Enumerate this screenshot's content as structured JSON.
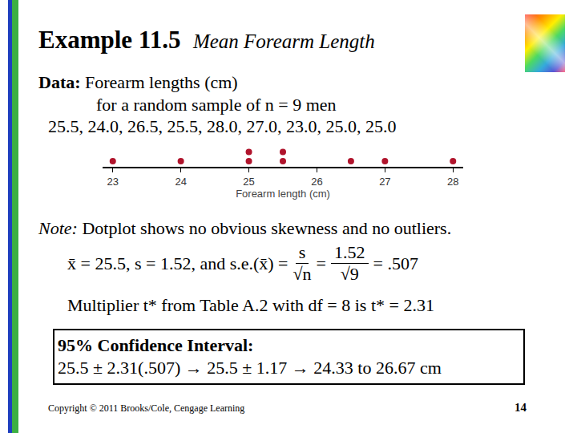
{
  "title": {
    "bold": "Example 11.5",
    "italic": "Mean Forearm Length"
  },
  "data_text": {
    "label": "Data:",
    "line1": " Forearm lengths (cm)",
    "line2": "for a random sample of n = 9 men",
    "line3": "25.5, 24.0, 26.5, 25.5, 28.0, 27.0, 23.0, 25.0, 25.0"
  },
  "note": {
    "label": "Note:",
    "text": " Dotplot shows no obvious skewness and no outliers."
  },
  "formula": {
    "lead": "x̄ = 25.5, s = 1.52, and s.e.(x̄) =",
    "frac1_num": "s",
    "frac1_den": "√n",
    "eq": "=",
    "frac2_num": "1.52",
    "frac2_den": "√9",
    "result": "= .507"
  },
  "multiplier": "Multiplier t* from Table A.2 with df = 8 is t* = 2.31",
  "interval": {
    "heading": "95% Confidence Interval:",
    "text": "25.5 ± 2.31(.507) → 25.5 ± 1.17 → 24.33 to 26.67 cm"
  },
  "footer": "Copyright © 2011 Brooks/Cole, Cengage Learning",
  "page": "14",
  "chart_data": {
    "type": "dotplot",
    "x_label": "Forearm length (cm)",
    "values": [
      25.5,
      24.0,
      26.5,
      25.5,
      28.0,
      27.0,
      23.0,
      25.0,
      25.0
    ],
    "xlim": [
      22.85,
      28.15
    ],
    "xticks": [
      23,
      24,
      25,
      26,
      27,
      28
    ],
    "color": "#b0142c",
    "tick_labels": "x",
    "grid": false
  }
}
